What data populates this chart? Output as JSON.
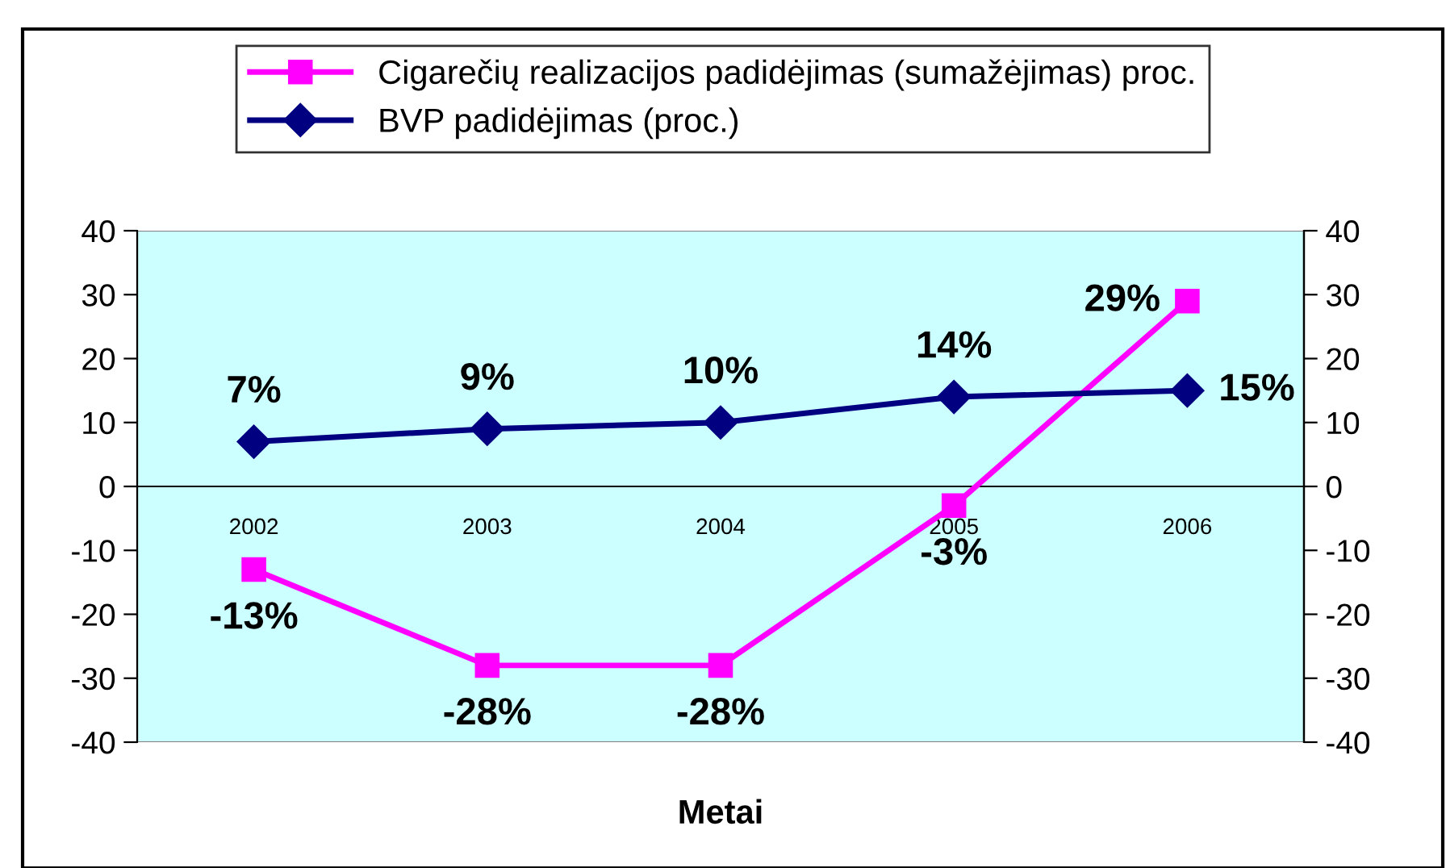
{
  "chart_data": {
    "type": "line",
    "xlabel": "Metai",
    "categories": [
      "2002",
      "2003",
      "2004",
      "2005",
      "2006"
    ],
    "series": [
      {
        "name": "Cigarečių realizacijos padidėjimas (sumažėjimas) proc.",
        "color": "#ff00ff",
        "marker": "square",
        "values": [
          -13,
          -28,
          -28,
          -3,
          29
        ],
        "value_labels": [
          "-13%",
          "-28%",
          "-28%",
          "-3%",
          "29%"
        ]
      },
      {
        "name": "BVP padidėjimas (proc.)",
        "color": "#000080",
        "marker": "diamond",
        "values": [
          7,
          9,
          10,
          14,
          15
        ],
        "value_labels": [
          "7%",
          "9%",
          "10%",
          "14%",
          "15%"
        ]
      }
    ],
    "ylim": [
      -40,
      40
    ],
    "yticks": [
      -40,
      -30,
      -20,
      -10,
      0,
      10,
      20,
      30,
      40
    ],
    "y2lim": [
      -40,
      40
    ],
    "y2ticks": [
      -40,
      -30,
      -20,
      -10,
      0,
      10,
      20,
      30,
      40
    ],
    "grid": false,
    "legend": "top",
    "line_style": "solid"
  }
}
